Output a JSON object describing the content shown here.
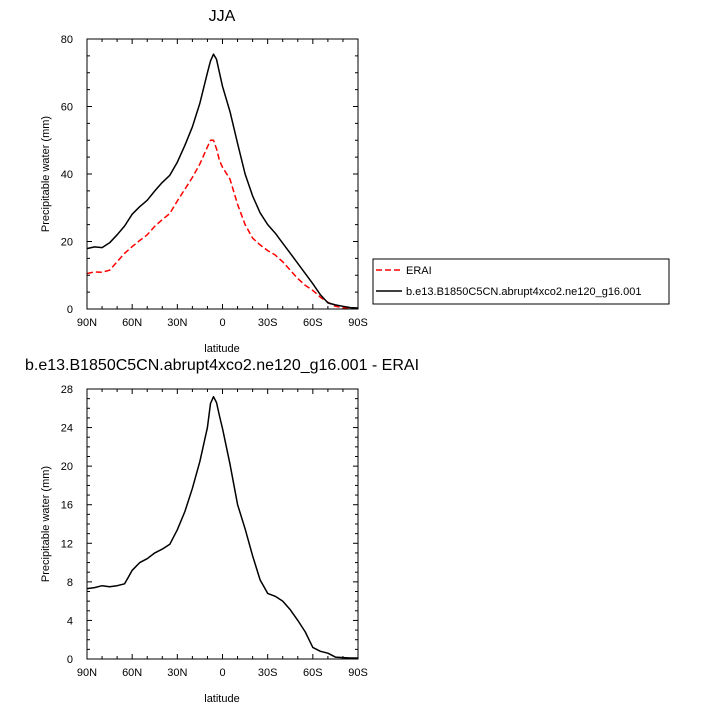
{
  "chart_data": [
    {
      "type": "line",
      "title": "JJA",
      "xlabel": "latitude",
      "ylabel": "Precipitable water (mm)",
      "xlim": [
        90,
        -90
      ],
      "ylim": [
        0,
        80
      ],
      "x_ticks": [
        90,
        60,
        30,
        0,
        -30,
        -60,
        -90
      ],
      "x_tick_labels": [
        "90N",
        "60N",
        "30N",
        "0",
        "30S",
        "60S",
        "90S"
      ],
      "y_ticks": [
        0,
        20,
        40,
        60,
        80
      ],
      "y_tick_labels": [
        "0",
        "20",
        "40",
        "60",
        "80"
      ],
      "legend_position": "right",
      "series": [
        {
          "name": "ERAI",
          "color": "#ff0000",
          "dash": "dashed",
          "x": [
            90,
            85,
            80,
            75,
            70,
            65,
            60,
            55,
            50,
            45,
            40,
            35,
            30,
            25,
            20,
            15,
            10,
            8,
            6,
            4,
            2,
            0,
            -5,
            -10,
            -15,
            -20,
            -25,
            -30,
            -35,
            -40,
            -45,
            -50,
            -55,
            -60,
            -65,
            -70,
            -75,
            -80,
            -85,
            -90
          ],
          "y": [
            10.5,
            11,
            10.9,
            11.5,
            14,
            16.5,
            18.5,
            20.3,
            22,
            24.5,
            26.5,
            28.3,
            32,
            35.5,
            39,
            43,
            48,
            50,
            50,
            47.5,
            44,
            42,
            38.5,
            31,
            25,
            21,
            19,
            17.3,
            16,
            14,
            11.5,
            9,
            7,
            5.5,
            3.5,
            2,
            0.8,
            0.4,
            0.2,
            0.1
          ]
        },
        {
          "name": "b.e13.B1850C5CN.abrupt4xco2.ne120_g16.001",
          "color": "#000000",
          "dash": "solid",
          "x": [
            90,
            85,
            80,
            75,
            70,
            65,
            60,
            55,
            50,
            45,
            40,
            35,
            30,
            25,
            20,
            15,
            10,
            8,
            6,
            4,
            2,
            0,
            -5,
            -10,
            -15,
            -20,
            -25,
            -30,
            -35,
            -40,
            -45,
            -50,
            -55,
            -60,
            -65,
            -70,
            -75,
            -80,
            -85,
            -90
          ],
          "y": [
            17.9,
            18.4,
            18.2,
            19.6,
            22,
            24.6,
            28.1,
            30.3,
            32.2,
            35,
            37.5,
            39.6,
            43.5,
            48.5,
            54,
            61,
            70,
            73.5,
            75.5,
            74,
            70,
            66,
            58.5,
            49,
            40,
            33.5,
            28.5,
            25,
            22.5,
            19.5,
            16.5,
            13.5,
            10.5,
            7.5,
            4.2,
            1.8,
            1.2,
            0.8,
            0.4,
            0.3
          ]
        }
      ]
    },
    {
      "type": "line",
      "title": "b.e13.B1850C5CN.abrupt4xco2.ne120_g16.001 - ERAI",
      "xlabel": "latitude",
      "ylabel": "Precipitable water (mm)",
      "xlim": [
        90,
        -90
      ],
      "ylim": [
        0,
        28
      ],
      "x_ticks": [
        90,
        60,
        30,
        0,
        -30,
        -60,
        -90
      ],
      "x_tick_labels": [
        "90N",
        "60N",
        "30N",
        "0",
        "30S",
        "60S",
        "90S"
      ],
      "y_ticks": [
        0,
        4,
        8,
        12,
        16,
        20,
        24,
        28
      ],
      "y_tick_labels": [
        "0",
        "4",
        "8",
        "12",
        "16",
        "20",
        "24",
        "28"
      ],
      "series": [
        {
          "color": "#000000",
          "dash": "solid",
          "x": [
            90,
            85,
            80,
            75,
            70,
            65,
            60,
            55,
            50,
            45,
            40,
            35,
            30,
            25,
            20,
            15,
            10,
            8,
            6,
            4,
            2,
            0,
            -5,
            -10,
            -15,
            -20,
            -25,
            -30,
            -35,
            -40,
            -45,
            -50,
            -55,
            -60,
            -65,
            -70,
            -75,
            -80,
            -85,
            -90
          ],
          "y": [
            7.3,
            7.4,
            7.6,
            7.5,
            7.6,
            7.8,
            9.2,
            10.0,
            10.4,
            11.0,
            11.4,
            11.9,
            13.4,
            15.3,
            17.7,
            20.5,
            24.0,
            26.5,
            27.2,
            26.6,
            25.2,
            23.9,
            20.2,
            16.0,
            13.5,
            10.7,
            8.2,
            6.8,
            6.5,
            6.0,
            5.1,
            4.0,
            2.8,
            1.2,
            0.8,
            0.6,
            0.2,
            0.15,
            0.1,
            0.1
          ]
        }
      ]
    }
  ]
}
